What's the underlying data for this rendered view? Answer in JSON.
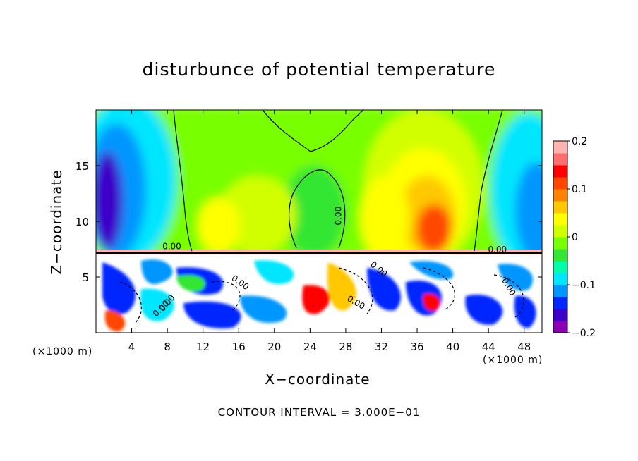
{
  "chart_data": {
    "type": "heatmap",
    "title": "disturbunce of potential temperature",
    "xlabel": "X−coordinate",
    "ylabel": "Z−coordinate",
    "x_unit_left": "(×1000 m)",
    "x_unit_right": "(×1000 m)",
    "x_ticks": [
      "4",
      "8",
      "12",
      "16",
      "20",
      "24",
      "28",
      "32",
      "36",
      "40",
      "44",
      "48"
    ],
    "x_tick_values": [
      4,
      8,
      12,
      16,
      20,
      24,
      28,
      32,
      36,
      40,
      44,
      48
    ],
    "y_ticks": [
      "5",
      "10",
      "15"
    ],
    "y_tick_values": [
      5,
      10,
      15
    ],
    "xlim": [
      0,
      50
    ],
    "ylim": [
      0,
      20
    ],
    "colorbar_ticks": [
      "0.2",
      "0.1",
      "0",
      "−0.1",
      "−0.2"
    ],
    "colorbar_values": [
      0.2,
      0.1,
      0,
      -0.1,
      -0.2
    ],
    "colorbar_range": [
      -0.2,
      0.2
    ],
    "colorbar_colors": [
      "#8c00b4",
      "#3c00c8",
      "#0028ff",
      "#0096ff",
      "#00e6ff",
      "#00ffaa",
      "#32e632",
      "#78ff00",
      "#d2ff00",
      "#ffff00",
      "#ffc800",
      "#ff8200",
      "#ff4600",
      "#ff0000",
      "#ff6e6e",
      "#ffb4b4"
    ],
    "contour_labels": [
      "0.00",
      "0.00",
      "0.00",
      "0.00",
      "0.00",
      "0.00",
      "0.00",
      "0.00",
      "0.00"
    ],
    "contour_interval": "CONTOUR INTERVAL = 3.000E−01",
    "grid": false,
    "legend": "colorbar right"
  }
}
